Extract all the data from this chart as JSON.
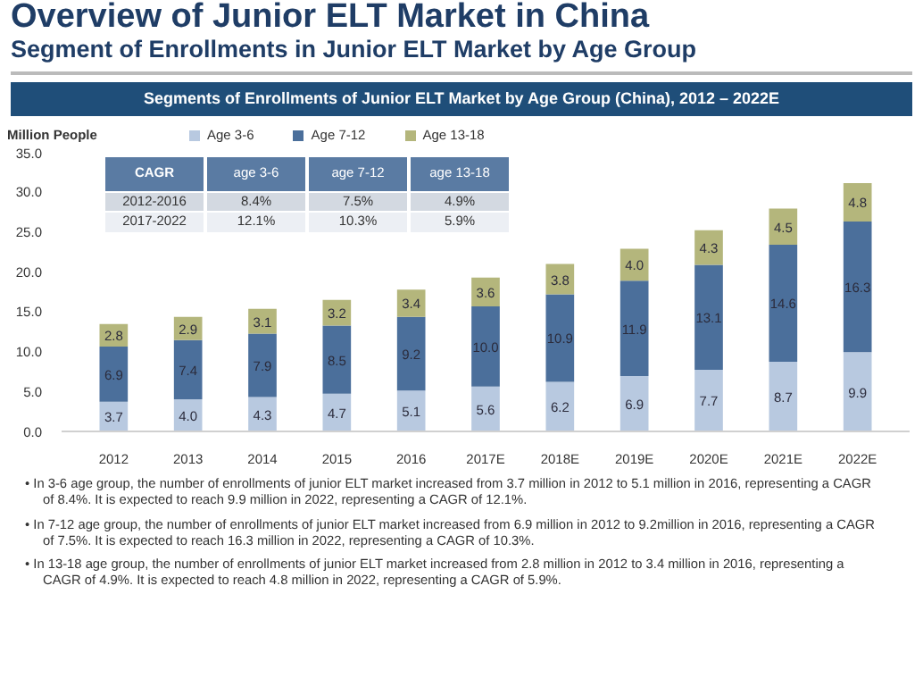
{
  "chart_data": {
    "type": "bar",
    "title": "Overview of Junior ELT Market in China",
    "subtitle": "Segment of Enrollments in Junior ELT Market by Age Group",
    "ylabel": "Million People",
    "categories": [
      "2012",
      "2013",
      "2014",
      "2015",
      "2016",
      "2017E",
      "2018E",
      "2019E",
      "2020E",
      "2021E",
      "2022E"
    ],
    "series": [
      {
        "name": "Age 3-6",
        "color": "#b8c9e0",
        "values": [
          3.7,
          4,
          4.3,
          4.7,
          5.1,
          5.6,
          6.2,
          6.9,
          7.7,
          8.7,
          9.9
        ],
        "value_labels": [
          "3.7",
          "4.0",
          "4.3",
          "4.7",
          "5.1",
          "5.6",
          "6.2",
          "6.9",
          "7.7",
          "8.7",
          "9.9"
        ]
      },
      {
        "name": "Age 7-12",
        "color": "#4b6f9b",
        "values": [
          6.9,
          7.4,
          7.9,
          8.5,
          9.2,
          10,
          10.9,
          11.9,
          13.1,
          14.6,
          16.3
        ],
        "value_labels": [
          "6.9",
          "7.4",
          "7.9",
          "8.5",
          "9.2",
          "10.0",
          "10.9",
          "11.9",
          "13.1",
          "14.6",
          "16.3"
        ]
      },
      {
        "name": "Age 13-18",
        "color": "#b4b67c",
        "values": [
          2.8,
          2.9,
          3.1,
          3.2,
          3.4,
          3.6,
          3.8,
          4,
          4.3,
          4.5,
          4.8
        ],
        "value_labels": [
          "2.8",
          "2.9",
          "3.1",
          "3.2",
          "3.4",
          "3.6",
          "3.8",
          "4.0",
          "4.3",
          "4.5",
          "4.8"
        ]
      }
    ],
    "stacked": true,
    "legend": "top",
    "grid": false,
    "ylim": [
      0,
      35
    ],
    "yticks": [
      {
        "value": 0,
        "label": "0.0"
      },
      {
        "value": 5,
        "label": "5.0"
      },
      {
        "value": 10,
        "label": "10.0"
      },
      {
        "value": 15,
        "label": "15.0"
      },
      {
        "value": 20,
        "label": "20.0"
      },
      {
        "value": 25,
        "label": "25.0"
      },
      {
        "value": 30,
        "label": "30.0"
      },
      {
        "value": 35,
        "label": "35.0"
      }
    ],
    "annotations": [
      "Segments of  Enrollments of Junior ELT Market by Age Group (China), 2012 – 2022E",
      "CAGR",
      "age 3-6",
      "age 7-12",
      "age 13-18",
      "2012-2016",
      "8.4%",
      "7.5%",
      "4.9%",
      "2017-2022",
      "12.1%",
      "10.3%",
      "5.9%",
      "• In 3-6 age group, the number of enrollments of junior ELT market increased from 3.7 million in 2012 to 5.1 million in 2016, representing a CAGR of 8.4%. It is expected to reach 9.9 million in 2022, representing a CAGR of 12.1%.",
      "• In 7-12 age group, the number of enrollments of junior ELT market increased from 6.9 million in 2012 to 9.2million in 2016, representing a CAGR of 7.5%. It is expected to reach 16.3 million in 2022, representing a CAGR of 10.3%.",
      "• In 13-18 age group, the number of enrollments of junior ELT market increased from 2.8 million in 2012 to 3.4 million in 2016, representing a CAGR of 4.9%. It is expected to reach 4.8 million in 2022, representing a CAGR of 5.9%."
    ]
  }
}
